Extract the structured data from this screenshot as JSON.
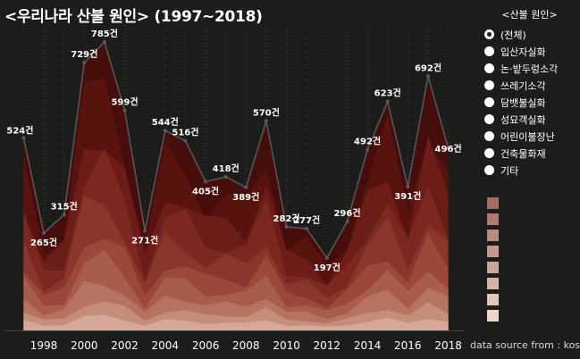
{
  "title": "<우리나라 산불 원인> (1997~2018)",
  "legend": {
    "title": "<산불 원인>",
    "items": [
      {
        "label": "(전체)",
        "selected": true
      },
      {
        "label": "입산자실화",
        "selected": false
      },
      {
        "label": "논·밭두렁소각",
        "selected": false
      },
      {
        "label": "쓰레기소각",
        "selected": false
      },
      {
        "label": "담뱃불실화",
        "selected": false
      },
      {
        "label": "성묘객실화",
        "selected": false
      },
      {
        "label": "어린이불장난",
        "selected": false
      },
      {
        "label": "건축물화재",
        "selected": false
      },
      {
        "label": "기타",
        "selected": false
      }
    ]
  },
  "source": "data source from : kosis",
  "colors": {
    "background": "#1c1c1a",
    "line": "#555555",
    "swatches": [
      "#a66b63",
      "#b07a70",
      "#b98a7e",
      "#c1978b",
      "#caa598",
      "#d5b4a7",
      "#e2c4b8",
      "#eed6cb"
    ]
  },
  "chart_data": {
    "type": "area",
    "x": [
      1997,
      1998,
      1999,
      2000,
      2001,
      2002,
      2003,
      2004,
      2005,
      2006,
      2007,
      2008,
      2009,
      2010,
      2011,
      2012,
      2013,
      2014,
      2015,
      2016,
      2017,
      2018
    ],
    "x_ticks": [
      "1998",
      "2000",
      "2002",
      "2004",
      "2006",
      "2008",
      "2010",
      "2012",
      "2014",
      "2016",
      "2018"
    ],
    "series": [
      {
        "name": "(전체)",
        "values": [
          524,
          265,
          315,
          729,
          785,
          599,
          271,
          544,
          516,
          405,
          418,
          389,
          570,
          282,
          277,
          197,
          296,
          492,
          623,
          391,
          692,
          496
        ]
      }
    ],
    "data_labels": [
      "524건",
      "265건",
      "315건",
      "729건",
      "785건",
      "599건",
      "271건",
      "544건",
      "516건",
      "405건",
      "418건",
      "389건",
      "570건",
      "282건",
      "277건",
      "197건",
      "296건",
      "492건",
      "623건",
      "391건",
      "692건",
      "496건"
    ],
    "ylim": [
      0,
      820
    ],
    "grid": true
  }
}
